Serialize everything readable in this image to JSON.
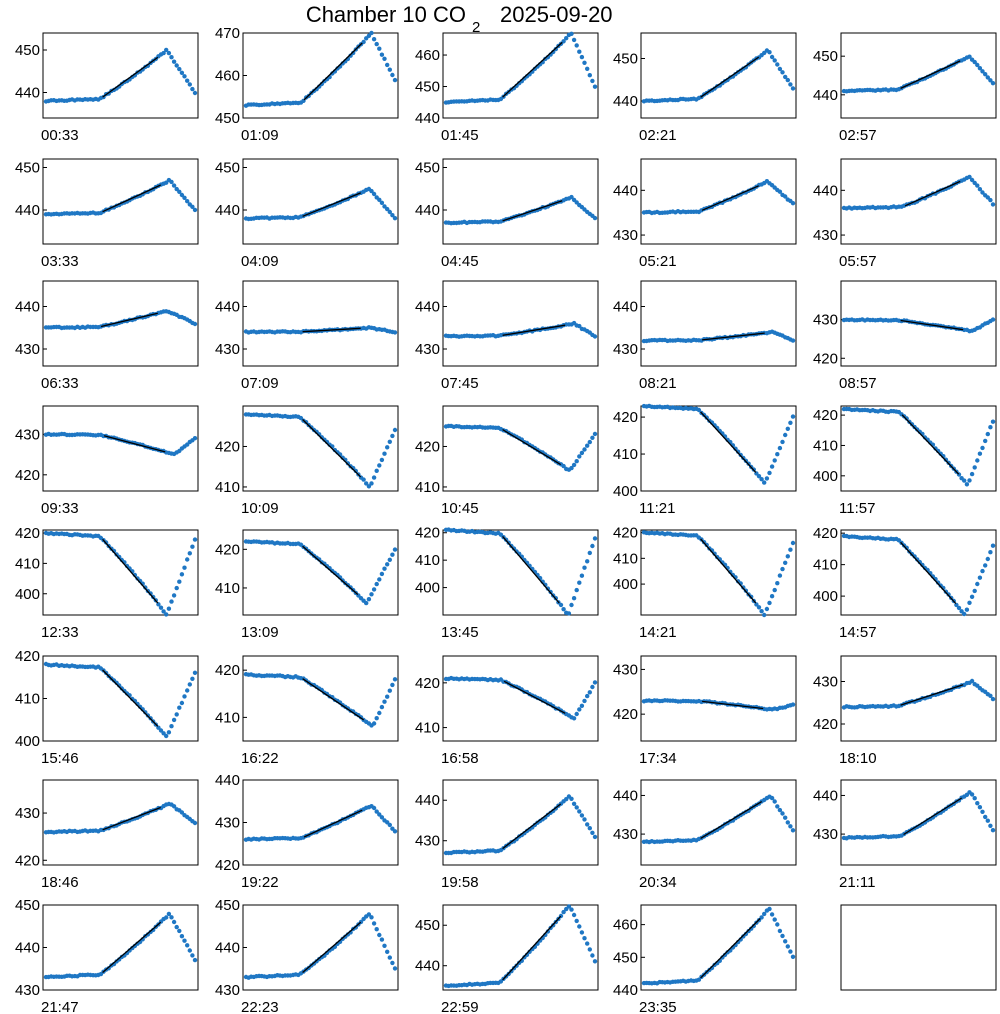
{
  "figure": {
    "title_main": "Chamber 10 CO",
    "title_sub": "2",
    "title_date": "2025-09-20",
    "colors": {
      "points": "#1f77c4",
      "fit": "#000000",
      "axes": "#000000"
    }
  },
  "chart_data": [
    {
      "type": "scatter",
      "label": "00:33",
      "yticks": [
        440,
        450
      ],
      "ylim": [
        434,
        454
      ],
      "base": 438,
      "peak": 450,
      "p0": 0.36,
      "ppk": 0.81,
      "end": 440,
      "pattern": "rise"
    },
    {
      "type": "scatter",
      "label": "01:09",
      "yticks": [
        450,
        460,
        470
      ],
      "ylim": [
        450,
        470
      ],
      "base": 453,
      "peak": 470,
      "p0": 0.37,
      "ppk": 0.84,
      "end": 459,
      "pattern": "rise"
    },
    {
      "type": "scatter",
      "label": "01:45",
      "yticks": [
        440,
        450,
        460
      ],
      "ylim": [
        440,
        467
      ],
      "base": 445,
      "peak": 467,
      "p0": 0.36,
      "ppk": 0.84,
      "end": 450,
      "pattern": "rise"
    },
    {
      "type": "scatter",
      "label": "02:21",
      "yticks": [
        440,
        450
      ],
      "ylim": [
        436,
        456
      ],
      "base": 440,
      "peak": 452,
      "p0": 0.36,
      "ppk": 0.83,
      "end": 443,
      "pattern": "rise"
    },
    {
      "type": "scatter",
      "label": "02:57",
      "yticks": [
        440,
        450
      ],
      "ylim": [
        434,
        456
      ],
      "base": 441,
      "peak": 450,
      "p0": 0.36,
      "ppk": 0.84,
      "end": 443,
      "pattern": "rise"
    },
    {
      "type": "scatter",
      "label": "03:33",
      "yticks": [
        440,
        450
      ],
      "ylim": [
        432,
        452
      ],
      "base": 439,
      "peak": 447,
      "p0": 0.36,
      "ppk": 0.83,
      "end": 440,
      "pattern": "rise"
    },
    {
      "type": "scatter",
      "label": "04:09",
      "yticks": [
        440,
        450
      ],
      "ylim": [
        432,
        452
      ],
      "base": 438,
      "peak": 445,
      "p0": 0.36,
      "ppk": 0.83,
      "end": 438,
      "pattern": "rise"
    },
    {
      "type": "scatter",
      "label": "04:45",
      "yticks": [
        440,
        450
      ],
      "ylim": [
        432,
        452
      ],
      "base": 437,
      "peak": 443,
      "p0": 0.36,
      "ppk": 0.84,
      "end": 438,
      "pattern": "rise"
    },
    {
      "type": "scatter",
      "label": "05:21",
      "yticks": [
        430,
        440
      ],
      "ylim": [
        428,
        447
      ],
      "base": 435,
      "peak": 442,
      "p0": 0.37,
      "ppk": 0.83,
      "end": 437,
      "pattern": "rise"
    },
    {
      "type": "scatter",
      "label": "05:57",
      "yticks": [
        430,
        440
      ],
      "ylim": [
        428,
        447
      ],
      "base": 436,
      "peak": 443,
      "p0": 0.39,
      "ppk": 0.84,
      "end": 437,
      "pattern": "rise"
    },
    {
      "type": "scatter",
      "label": "06:33",
      "yticks": [
        430,
        440
      ],
      "ylim": [
        426,
        446
      ],
      "base": 435,
      "peak": 439,
      "p0": 0.35,
      "ppk": 0.81,
      "end": 436,
      "pattern": "rise"
    },
    {
      "type": "scatter",
      "label": "07:09",
      "yticks": [
        430,
        440
      ],
      "ylim": [
        426,
        446
      ],
      "base": 434,
      "peak": 435,
      "p0": 0.36,
      "ppk": 0.83,
      "end": 434,
      "pattern": "rise"
    },
    {
      "type": "scatter",
      "label": "07:45",
      "yticks": [
        430,
        440
      ],
      "ylim": [
        426,
        446
      ],
      "base": 433,
      "peak": 436,
      "p0": 0.36,
      "ppk": 0.86,
      "end": 433,
      "pattern": "rise"
    },
    {
      "type": "scatter",
      "label": "08:21",
      "yticks": [
        430,
        440
      ],
      "ylim": [
        426,
        446
      ],
      "base": 432,
      "peak": 434,
      "p0": 0.37,
      "ppk": 0.87,
      "end": 432,
      "pattern": "rise"
    },
    {
      "type": "scatter",
      "label": "08:57",
      "yticks": [
        420,
        430
      ],
      "ylim": [
        418,
        440
      ],
      "base": 430,
      "peak": 427,
      "p0": 0.36,
      "ppk": 0.86,
      "end": 430,
      "pattern": "fall"
    },
    {
      "type": "scatter",
      "label": "09:33",
      "yticks": [
        420,
        430
      ],
      "ylim": [
        416,
        437
      ],
      "base": 430,
      "peak": 425,
      "p0": 0.37,
      "ppk": 0.86,
      "end": 429,
      "pattern": "fall"
    },
    {
      "type": "scatter",
      "label": "10:09",
      "yticks": [
        410,
        420
      ],
      "ylim": [
        409,
        430
      ],
      "base": 428,
      "peak": 410,
      "p0": 0.36,
      "ppk": 0.83,
      "end": 424,
      "pattern": "fall"
    },
    {
      "type": "scatter",
      "label": "10:45",
      "yticks": [
        410,
        420
      ],
      "ylim": [
        409,
        430
      ],
      "base": 425,
      "peak": 414,
      "p0": 0.36,
      "ppk": 0.83,
      "end": 423,
      "pattern": "fall"
    },
    {
      "type": "scatter",
      "label": "11:21",
      "yticks": [
        400,
        410,
        420
      ],
      "ylim": [
        400,
        423
      ],
      "base": 423,
      "peak": 402,
      "p0": 0.36,
      "ppk": 0.81,
      "end": 420,
      "pattern": "fall"
    },
    {
      "type": "scatter",
      "label": "11:57",
      "yticks": [
        400,
        410,
        420
      ],
      "ylim": [
        395,
        423
      ],
      "base": 422,
      "peak": 397,
      "p0": 0.37,
      "ppk": 0.83,
      "end": 418,
      "pattern": "fall"
    },
    {
      "type": "scatter",
      "label": "12:33",
      "yticks": [
        400,
        410,
        420
      ],
      "ylim": [
        393,
        421
      ],
      "base": 420,
      "peak": 393,
      "p0": 0.36,
      "ppk": 0.81,
      "end": 418,
      "pattern": "fall"
    },
    {
      "type": "scatter",
      "label": "13:09",
      "yticks": [
        410,
        420
      ],
      "ylim": [
        403,
        425
      ],
      "base": 422,
      "peak": 406,
      "p0": 0.36,
      "ppk": 0.81,
      "end": 420,
      "pattern": "fall"
    },
    {
      "type": "scatter",
      "label": "13:45",
      "yticks": [
        400,
        410,
        420
      ],
      "ylim": [
        390,
        421
      ],
      "base": 421,
      "peak": 390,
      "p0": 0.36,
      "ppk": 0.82,
      "end": 418,
      "pattern": "fall"
    },
    {
      "type": "scatter",
      "label": "14:21",
      "yticks": [
        400,
        410,
        420
      ],
      "ylim": [
        388,
        421
      ],
      "base": 420,
      "peak": 388,
      "p0": 0.36,
      "ppk": 0.81,
      "end": 416,
      "pattern": "fall"
    },
    {
      "type": "scatter",
      "label": "14:57",
      "yticks": [
        400,
        410,
        420
      ],
      "ylim": [
        394,
        421
      ],
      "base": 419,
      "peak": 394,
      "p0": 0.36,
      "ppk": 0.81,
      "end": 416,
      "pattern": "fall"
    },
    {
      "type": "scatter",
      "label": "15:46",
      "yticks": [
        400,
        410,
        420
      ],
      "ylim": [
        400,
        420
      ],
      "base": 418,
      "peak": 401,
      "p0": 0.36,
      "ppk": 0.81,
      "end": 416,
      "pattern": "fall"
    },
    {
      "type": "scatter",
      "label": "16:22",
      "yticks": [
        410,
        420
      ],
      "ylim": [
        405,
        423
      ],
      "base": 419,
      "peak": 408,
      "p0": 0.36,
      "ppk": 0.85,
      "end": 418,
      "pattern": "fall"
    },
    {
      "type": "scatter",
      "label": "16:58",
      "yticks": [
        410,
        420
      ],
      "ylim": [
        407,
        426
      ],
      "base": 421,
      "peak": 412,
      "p0": 0.37,
      "ppk": 0.86,
      "end": 420,
      "pattern": "fall"
    },
    {
      "type": "scatter",
      "label": "17:34",
      "yticks": [
        420,
        430
      ],
      "ylim": [
        414,
        433
      ],
      "base": 423,
      "peak": 421,
      "p0": 0.37,
      "ppk": 0.86,
      "end": 422,
      "pattern": "fall"
    },
    {
      "type": "scatter",
      "label": "18:10",
      "yticks": [
        420,
        430
      ],
      "ylim": [
        416,
        436
      ],
      "base": 424,
      "peak": 430,
      "p0": 0.36,
      "ppk": 0.86,
      "end": 426,
      "pattern": "rise"
    },
    {
      "type": "scatter",
      "label": "18:46",
      "yticks": [
        420,
        430
      ],
      "ylim": [
        419,
        437
      ],
      "base": 426,
      "peak": 432,
      "p0": 0.36,
      "ppk": 0.83,
      "end": 428,
      "pattern": "rise"
    },
    {
      "type": "scatter",
      "label": "19:22",
      "yticks": [
        420,
        430,
        440
      ],
      "ylim": [
        420,
        440
      ],
      "base": 426,
      "peak": 434,
      "p0": 0.37,
      "ppk": 0.84,
      "end": 428,
      "pattern": "rise"
    },
    {
      "type": "scatter",
      "label": "19:58",
      "yticks": [
        430,
        440
      ],
      "ylim": [
        424,
        445
      ],
      "base": 427,
      "peak": 441,
      "p0": 0.36,
      "ppk": 0.83,
      "end": 431,
      "pattern": "rise"
    },
    {
      "type": "scatter",
      "label": "20:34",
      "yticks": [
        430,
        440
      ],
      "ylim": [
        422,
        444
      ],
      "base": 428,
      "peak": 440,
      "p0": 0.36,
      "ppk": 0.85,
      "end": 431,
      "pattern": "rise"
    },
    {
      "type": "scatter",
      "label": "21:11",
      "yticks": [
        430,
        440
      ],
      "ylim": [
        422,
        444
      ],
      "base": 429,
      "peak": 441,
      "p0": 0.38,
      "ppk": 0.85,
      "end": 431,
      "pattern": "rise"
    },
    {
      "type": "scatter",
      "label": "21:47",
      "yticks": [
        430,
        440,
        450
      ],
      "ylim": [
        430,
        450
      ],
      "base": 433,
      "peak": 448,
      "p0": 0.36,
      "ppk": 0.83,
      "end": 437,
      "pattern": "rise"
    },
    {
      "type": "scatter",
      "label": "22:23",
      "yticks": [
        430,
        440,
        450
      ],
      "ylim": [
        430,
        450
      ],
      "base": 433,
      "peak": 448,
      "p0": 0.36,
      "ppk": 0.83,
      "end": 435,
      "pattern": "rise"
    },
    {
      "type": "scatter",
      "label": "22:59",
      "yticks": [
        440,
        450
      ],
      "ylim": [
        434,
        455
      ],
      "base": 435,
      "peak": 455,
      "p0": 0.36,
      "ppk": 0.83,
      "end": 441,
      "pattern": "rise"
    },
    {
      "type": "scatter",
      "label": "23:35",
      "yticks": [
        440,
        450,
        460
      ],
      "ylim": [
        440,
        466
      ],
      "base": 442,
      "peak": 465,
      "p0": 0.36,
      "ppk": 0.84,
      "end": 450,
      "pattern": "rise"
    },
    {
      "type": "empty",
      "label": "",
      "yticks": []
    }
  ]
}
